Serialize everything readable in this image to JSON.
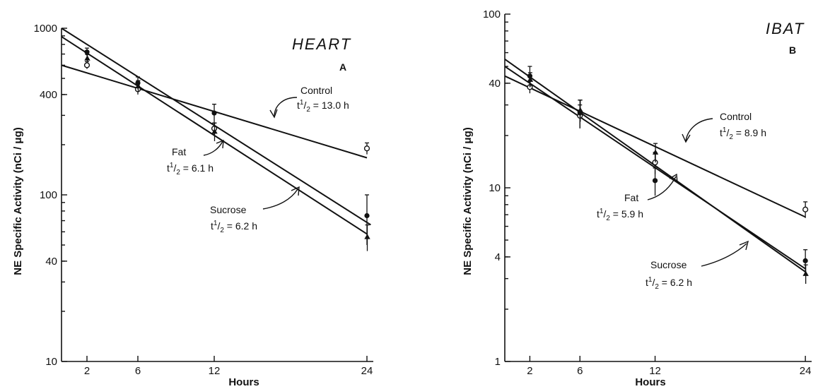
{
  "chart_data": [
    {
      "type": "scatter",
      "title": "HEART",
      "panel": "A",
      "xlabel": "Hours",
      "ylabel": "NE Specific Activity  (nCi / μg)",
      "xlim": [
        0,
        24.5
      ],
      "ylim": [
        10,
        1000
      ],
      "y_scale": "log",
      "xticks": [
        2,
        6,
        12,
        24
      ],
      "yticks": [
        10,
        40,
        100,
        400,
        1000
      ],
      "grid": false,
      "series": [
        {
          "name": "Control",
          "marker": "open-circle",
          "x": [
            2,
            6,
            12,
            24
          ],
          "y": [
            600,
            430,
            250,
            190
          ],
          "err": [
            30,
            30,
            20,
            15
          ],
          "fit": {
            "t_half": 13.0,
            "y0": 600,
            "x_start": 0,
            "x_end": 24
          }
        },
        {
          "name": "Fat",
          "marker": "filled-circle",
          "x": [
            2,
            6,
            12,
            24
          ],
          "y": [
            720,
            470,
            310,
            75
          ],
          "err": [
            40,
            40,
            40,
            25
          ],
          "fit": {
            "t_half": 6.1,
            "y0": 890,
            "x_start": 0,
            "x_end": 24
          }
        },
        {
          "name": "Sucrose",
          "marker": "filled-triangle",
          "x": [
            2,
            6,
            12,
            24
          ],
          "y": [
            660,
            450,
            240,
            56
          ],
          "err": [
            35,
            35,
            30,
            10
          ],
          "fit": {
            "t_half": 6.2,
            "y0": 1000,
            "x_start": 0,
            "x_end": 24.3
          }
        }
      ],
      "annotations": [
        {
          "label": "Control",
          "t_half": "13.0 h"
        },
        {
          "label": "Fat",
          "t_half": "6.1 h"
        },
        {
          "label": "Sucrose",
          "t_half": "6.2 h"
        }
      ]
    },
    {
      "type": "scatter",
      "title": "IBAT",
      "panel": "B",
      "xlabel": "Hours",
      "ylabel": "NE Specific Activity  (nCi / μg)",
      "xlim": [
        0,
        24.5
      ],
      "ylim": [
        1,
        100
      ],
      "y_scale": "log",
      "xticks": [
        2,
        6,
        12,
        24
      ],
      "yticks": [
        1,
        4,
        10,
        40,
        100
      ],
      "grid": false,
      "series": [
        {
          "name": "Control",
          "marker": "open-circle",
          "x": [
            2,
            6,
            12,
            24
          ],
          "y": [
            38,
            26,
            14,
            7.5
          ],
          "err": [
            3,
            4,
            2,
            0.8
          ],
          "fit": {
            "t_half": 8.9,
            "y0": 44,
            "x_start": 0,
            "x_end": 24
          }
        },
        {
          "name": "Fat",
          "marker": "filled-circle",
          "x": [
            2,
            6,
            12,
            24
          ],
          "y": [
            44,
            27,
            11,
            3.8
          ],
          "err": [
            6,
            5,
            2,
            0.6
          ],
          "fit": {
            "t_half": 5.9,
            "y0": 55,
            "x_start": 0,
            "x_end": 24
          }
        },
        {
          "name": "Sucrose",
          "marker": "filled-triangle",
          "x": [
            2,
            6,
            12,
            24
          ],
          "y": [
            42,
            28,
            16,
            3.2
          ],
          "err": [
            4,
            4,
            2,
            0.4
          ],
          "fit": {
            "t_half": 6.2,
            "y0": 50,
            "x_start": 0,
            "x_end": 24
          }
        }
      ],
      "annotations": [
        {
          "label": "Control",
          "t_half": "8.9 h"
        },
        {
          "label": "Fat",
          "t_half": "5.9 h"
        },
        {
          "label": "Sucrose",
          "t_half": "6.2 h"
        }
      ]
    }
  ]
}
